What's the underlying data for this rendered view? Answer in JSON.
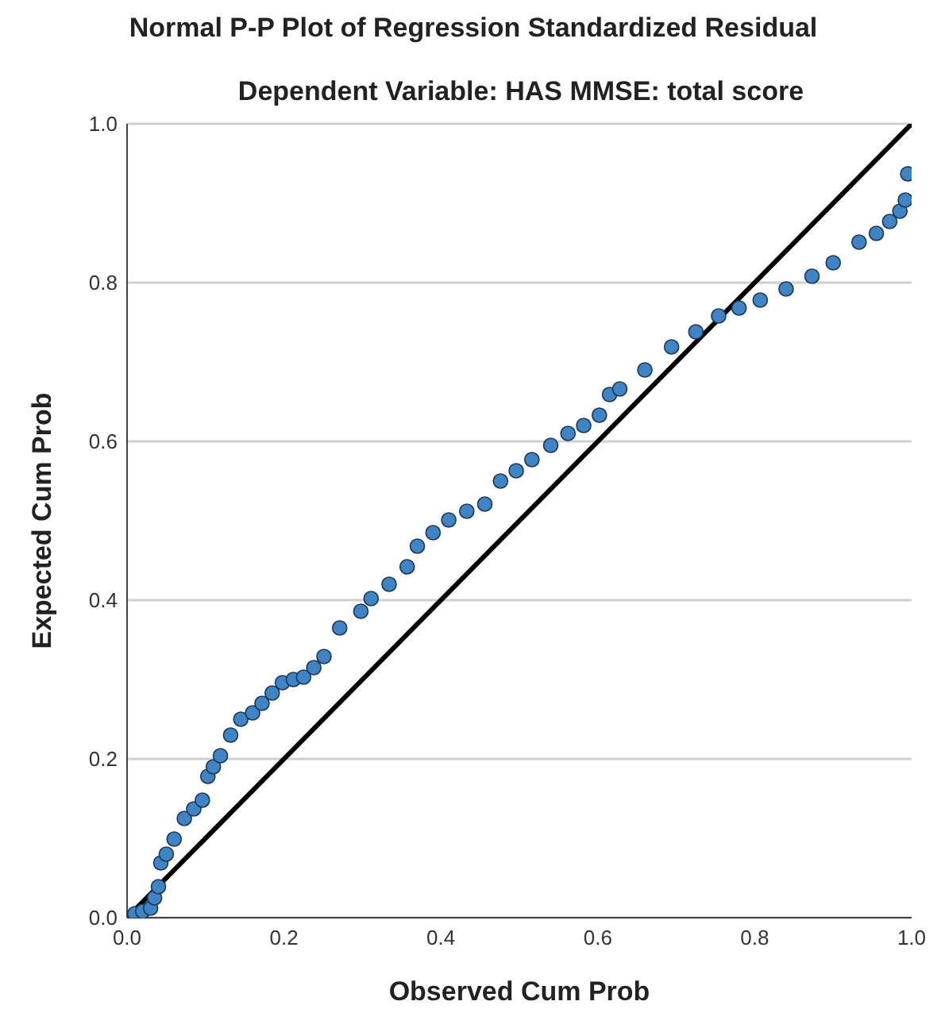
{
  "chart_data": {
    "type": "scatter",
    "title": "Normal P-P Plot of Regression Standardized Residual",
    "subtitle": "Dependent Variable: HAS MMSE: total score",
    "xlabel": "Observed Cum Prob",
    "ylabel": "Expected Cum Prob",
    "xlim": [
      0,
      1
    ],
    "ylim": [
      0,
      1
    ],
    "xticks": [
      {
        "value": 0,
        "label": "0.0"
      },
      {
        "value": 0.2,
        "label": "0.2"
      },
      {
        "value": 0.4,
        "label": "0.4"
      },
      {
        "value": 0.6,
        "label": "0.6"
      },
      {
        "value": 0.8,
        "label": "0.8"
      },
      {
        "value": 1,
        "label": "1.0"
      }
    ],
    "yticks": [
      {
        "value": 0,
        "label": "0.0"
      },
      {
        "value": 0.2,
        "label": "0.2"
      },
      {
        "value": 0.4,
        "label": "0.4"
      },
      {
        "value": 0.6,
        "label": "0.6"
      },
      {
        "value": 0.8,
        "label": "0.8"
      },
      {
        "value": 1,
        "label": "1.0"
      }
    ],
    "grid": "y",
    "series": [
      {
        "marker": "circle",
        "color": "#3d85c6",
        "x": [
          0.01,
          0.02,
          0.03,
          0.035,
          0.04,
          0.043,
          0.05,
          0.06,
          0.073,
          0.085,
          0.096,
          0.103,
          0.11,
          0.119,
          0.132,
          0.145,
          0.16,
          0.172,
          0.185,
          0.198,
          0.212,
          0.225,
          0.238,
          0.251,
          0.271,
          0.298,
          0.311,
          0.334,
          0.357,
          0.37,
          0.39,
          0.41,
          0.433,
          0.456,
          0.476,
          0.496,
          0.516,
          0.54,
          0.562,
          0.582,
          0.602,
          0.615,
          0.628,
          0.66,
          0.694,
          0.725,
          0.754,
          0.78,
          0.807,
          0.84,
          0.873,
          0.9,
          0.933,
          0.955,
          0.972,
          0.985,
          0.992,
          0.995
        ],
        "values": [
          0.005,
          0.008,
          0.012,
          0.025,
          0.039,
          0.069,
          0.08,
          0.099,
          0.125,
          0.137,
          0.148,
          0.178,
          0.19,
          0.204,
          0.23,
          0.25,
          0.258,
          0.27,
          0.283,
          0.296,
          0.3,
          0.303,
          0.315,
          0.329,
          0.365,
          0.386,
          0.402,
          0.42,
          0.442,
          0.468,
          0.485,
          0.501,
          0.512,
          0.521,
          0.55,
          0.563,
          0.577,
          0.595,
          0.61,
          0.62,
          0.633,
          0.659,
          0.666,
          0.69,
          0.719,
          0.738,
          0.758,
          0.768,
          0.778,
          0.792,
          0.808,
          0.825,
          0.851,
          0.862,
          0.877,
          0.89,
          0.904,
          0.937
        ]
      },
      {
        "type": "line",
        "marker": "none",
        "color": "#000000",
        "x": [
          0,
          1
        ],
        "values": [
          0,
          1
        ]
      }
    ]
  }
}
